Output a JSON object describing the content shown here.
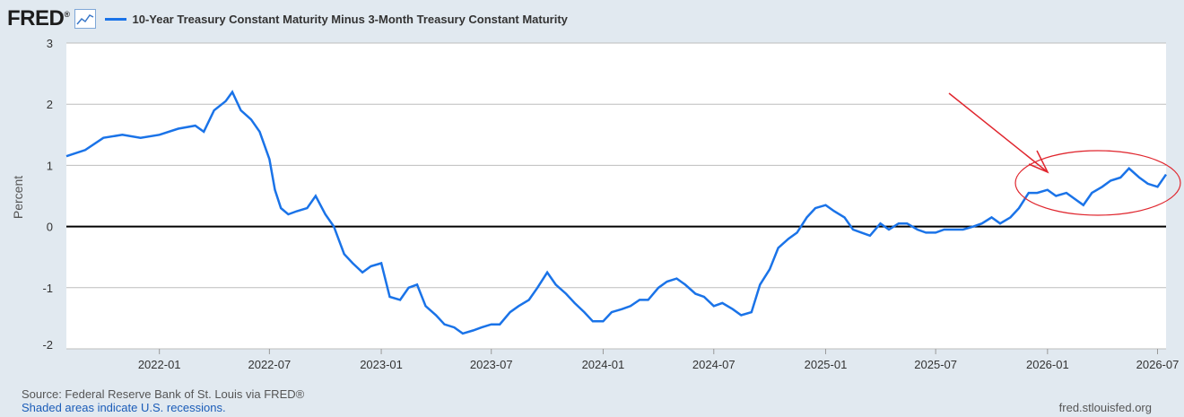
{
  "brand": {
    "logo_text": "FRED",
    "logo_mark": "®"
  },
  "colors": {
    "series": "#1a73e8",
    "annotation": "#e0262e",
    "grid": "#bdbdbd",
    "zero_line": "#000000"
  },
  "chart_data": {
    "type": "line",
    "title": "",
    "ylabel": "Percent",
    "ylim": [
      -2,
      3
    ],
    "yticks": [
      -2,
      -1,
      0,
      1,
      2,
      3
    ],
    "xticks": [
      "2022-01",
      "2022-07",
      "2023-01",
      "2023-07",
      "2024-01",
      "2024-07",
      "2025-01",
      "2025-07",
      "2026-01",
      "2026-07"
    ],
    "xlim": [
      "2021-08-01",
      "2026-07-15"
    ],
    "legend": "top-left",
    "grid": true,
    "series": [
      {
        "name": "10-Year Treasury Constant Maturity Minus 3-Month Treasury Constant Maturity",
        "x": [
          "2021-08-01",
          "2021-09-01",
          "2021-10-01",
          "2021-11-01",
          "2021-12-01",
          "2022-01-01",
          "2022-02-01",
          "2022-03-01",
          "2022-03-15",
          "2022-04-01",
          "2022-04-20",
          "2022-05-01",
          "2022-05-15",
          "2022-06-01",
          "2022-06-15",
          "2022-07-01",
          "2022-07-10",
          "2022-07-20",
          "2022-08-01",
          "2022-08-15",
          "2022-09-01",
          "2022-09-15",
          "2022-10-01",
          "2022-10-15",
          "2022-11-01",
          "2022-11-15",
          "2022-12-01",
          "2022-12-15",
          "2023-01-01",
          "2023-01-15",
          "2023-02-01",
          "2023-02-15",
          "2023-03-01",
          "2023-03-15",
          "2023-04-01",
          "2023-04-15",
          "2023-05-01",
          "2023-05-15",
          "2023-06-01",
          "2023-06-15",
          "2023-07-01",
          "2023-07-15",
          "2023-08-01",
          "2023-08-15",
          "2023-09-01",
          "2023-09-15",
          "2023-10-01",
          "2023-10-15",
          "2023-11-01",
          "2023-11-15",
          "2023-12-01",
          "2023-12-15",
          "2024-01-01",
          "2024-01-15",
          "2024-02-01",
          "2024-02-15",
          "2024-03-01",
          "2024-03-15",
          "2024-04-01",
          "2024-04-15",
          "2024-05-01",
          "2024-05-15",
          "2024-06-01",
          "2024-06-15",
          "2024-07-01",
          "2024-07-15",
          "2024-08-01",
          "2024-08-15",
          "2024-09-01",
          "2024-09-15",
          "2024-10-01",
          "2024-10-15",
          "2024-11-01",
          "2024-11-15",
          "2024-12-01",
          "2024-12-15",
          "2025-01-01",
          "2025-01-15",
          "2025-02-01",
          "2025-02-15",
          "2025-03-01",
          "2025-03-15",
          "2025-04-01",
          "2025-04-15",
          "2025-05-01",
          "2025-05-15",
          "2025-06-01",
          "2025-06-15",
          "2025-07-01",
          "2025-07-15",
          "2025-08-01",
          "2025-08-15",
          "2025-09-01",
          "2025-09-15",
          "2025-10-01",
          "2025-10-15",
          "2025-11-01",
          "2025-11-15",
          "2025-12-01",
          "2025-12-15",
          "2026-01-01",
          "2026-01-15",
          "2026-02-01",
          "2026-02-15",
          "2026-03-01",
          "2026-03-15",
          "2026-04-01",
          "2026-04-15",
          "2026-05-01",
          "2026-05-15",
          "2026-06-01",
          "2026-06-15",
          "2026-07-01",
          "2026-07-15"
        ],
        "y": [
          1.15,
          1.25,
          1.45,
          1.5,
          1.45,
          1.5,
          1.6,
          1.65,
          1.55,
          1.9,
          2.05,
          2.2,
          1.9,
          1.75,
          1.55,
          1.1,
          0.6,
          0.3,
          0.2,
          0.25,
          0.3,
          0.5,
          0.2,
          0.0,
          -0.45,
          -0.6,
          -0.75,
          -0.65,
          -0.6,
          -1.15,
          -1.2,
          -1.0,
          -0.95,
          -1.3,
          -1.45,
          -1.6,
          -1.65,
          -1.75,
          -1.7,
          -1.65,
          -1.6,
          -1.6,
          -1.4,
          -1.3,
          -1.2,
          -1.0,
          -0.75,
          -0.95,
          -1.1,
          -1.25,
          -1.4,
          -1.55,
          -1.55,
          -1.4,
          -1.35,
          -1.3,
          -1.2,
          -1.2,
          -1.0,
          -0.9,
          -0.85,
          -0.95,
          -1.1,
          -1.15,
          -1.3,
          -1.25,
          -1.35,
          -1.45,
          -1.4,
          -0.95,
          -0.7,
          -0.35,
          -0.2,
          -0.1,
          0.15,
          0.3,
          0.35,
          0.25,
          0.15,
          -0.05,
          -0.1,
          -0.15,
          0.05,
          -0.05,
          0.05,
          0.05,
          -0.05,
          -0.1,
          -0.1,
          -0.05,
          -0.05,
          -0.05,
          0.0,
          0.05,
          0.15,
          0.05,
          0.15,
          0.3,
          0.55,
          0.55,
          0.6,
          0.5,
          0.55,
          0.45,
          0.35,
          0.55,
          0.65,
          0.75,
          0.8,
          0.95,
          0.8,
          0.7,
          0.65,
          0.85
        ]
      }
    ],
    "annotations": [
      {
        "type": "arrow",
        "color": "#e0262e"
      },
      {
        "type": "ellipse",
        "color": "#e0262e"
      }
    ]
  },
  "footer": {
    "source": "Source: Federal Reserve Bank of St. Louis via FRED®",
    "recessions": "Shaded areas indicate U.S. recessions.",
    "site": "fred.stlouisfed.org"
  }
}
